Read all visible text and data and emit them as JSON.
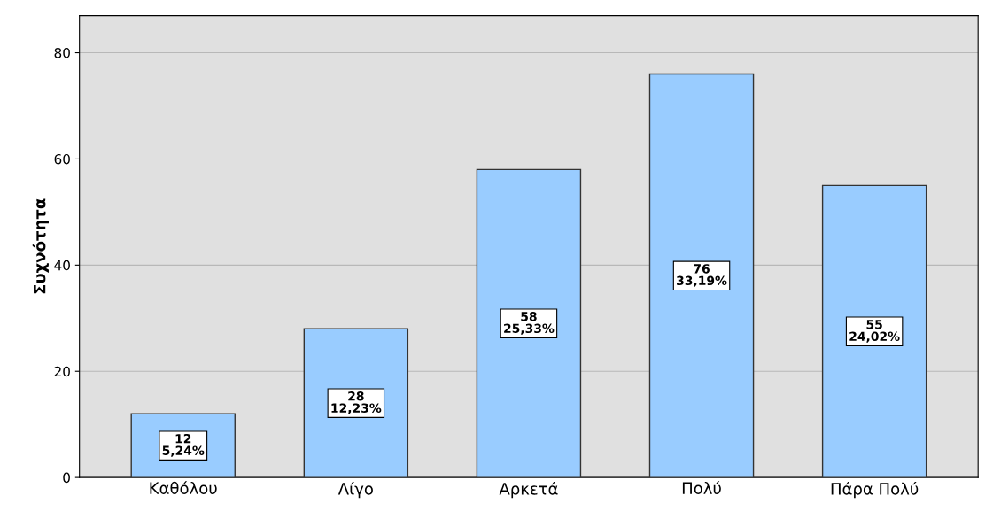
{
  "chart_data": {
    "type": "bar",
    "ylabel": "Συχνότητα",
    "categories": [
      "Καθόλου",
      "Λίγο",
      "Αρκετά",
      "Πολύ",
      "Πάρα Πολύ"
    ],
    "values": [
      12,
      28,
      58,
      76,
      55
    ],
    "value_labels": [
      "12\n5,24%",
      "28\n12,23%",
      "58\n25,33%",
      "76\n33,19%",
      "55\n24,02%"
    ],
    "color": "#99ccff",
    "ylim": [
      0,
      87
    ],
    "yticks": [
      0,
      20,
      40,
      60,
      80
    ],
    "grid": "y"
  }
}
